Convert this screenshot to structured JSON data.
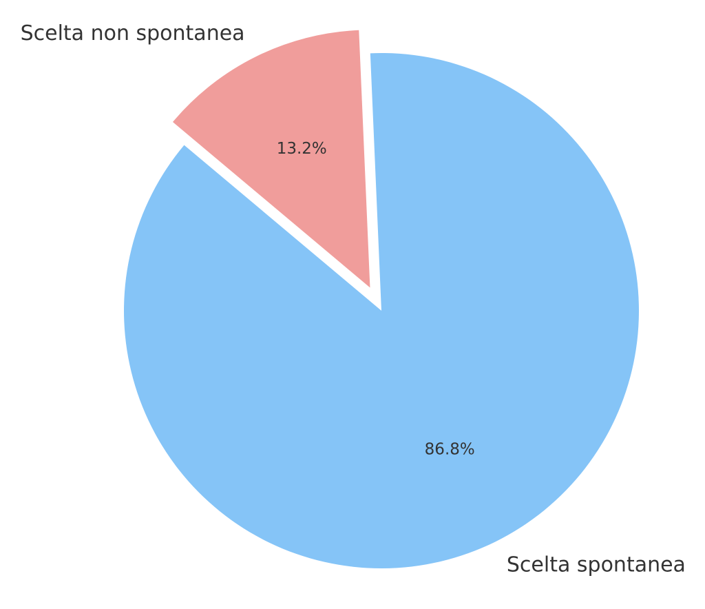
{
  "chart_data": {
    "type": "pie",
    "slices": [
      {
        "label": "Scelta spontanea",
        "value": 86.8,
        "value_label": "86.8%",
        "color": "#85C4F7",
        "exploded": false
      },
      {
        "label": "Scelta non spontanea",
        "value": 13.2,
        "value_label": "13.2%",
        "color": "#F09D9B",
        "exploded": true
      }
    ],
    "title": "",
    "legend": "none"
  }
}
